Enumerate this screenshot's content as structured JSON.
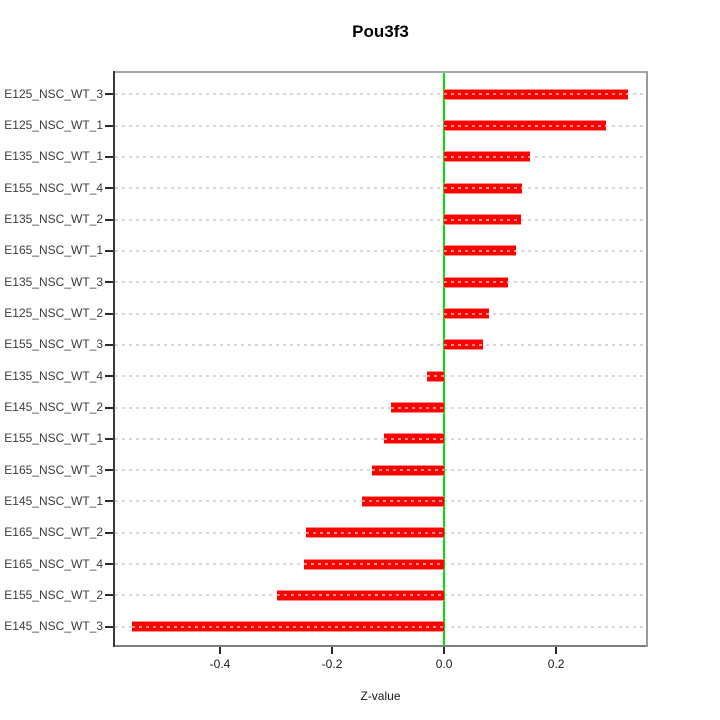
{
  "chart_data": {
    "type": "bar",
    "orientation": "horizontal",
    "title": "Pou3f3",
    "xlabel": "Z-value",
    "ylabel": "",
    "categories": [
      "E125_NSC_WT_3",
      "E125_NSC_WT_1",
      "E135_NSC_WT_1",
      "E155_NSC_WT_4",
      "E135_NSC_WT_2",
      "E165_NSC_WT_1",
      "E135_NSC_WT_3",
      "E125_NSC_WT_2",
      "E155_NSC_WT_3",
      "E135_NSC_WT_4",
      "E145_NSC_WT_2",
      "E155_NSC_WT_1",
      "E165_NSC_WT_3",
      "E145_NSC_WT_1",
      "E165_NSC_WT_2",
      "E165_NSC_WT_4",
      "E155_NSC_WT_2",
      "E145_NSC_WT_3"
    ],
    "values": [
      0.329,
      0.289,
      0.154,
      0.139,
      0.138,
      0.128,
      0.114,
      0.08,
      0.07,
      -0.03,
      -0.095,
      -0.107,
      -0.129,
      -0.146,
      -0.246,
      -0.25,
      -0.298,
      -0.557
    ],
    "xlim": [
      -0.591,
      0.364
    ],
    "xtick_values": [
      -0.4,
      -0.2,
      0.0,
      0.2
    ],
    "xtick_labels": [
      "-0.4",
      "-0.2",
      "0.0",
      "0.2"
    ],
    "grid": "dotted horizontal line per category",
    "zero_line_value": 0.0,
    "legend": null,
    "colors": {
      "bar": "#fb0100",
      "bar_edge": "#ff8a8a",
      "zero_line": "#00e100",
      "gridline": "#d8d8d8",
      "box": "#9a9a9a",
      "text": "#000000"
    }
  }
}
